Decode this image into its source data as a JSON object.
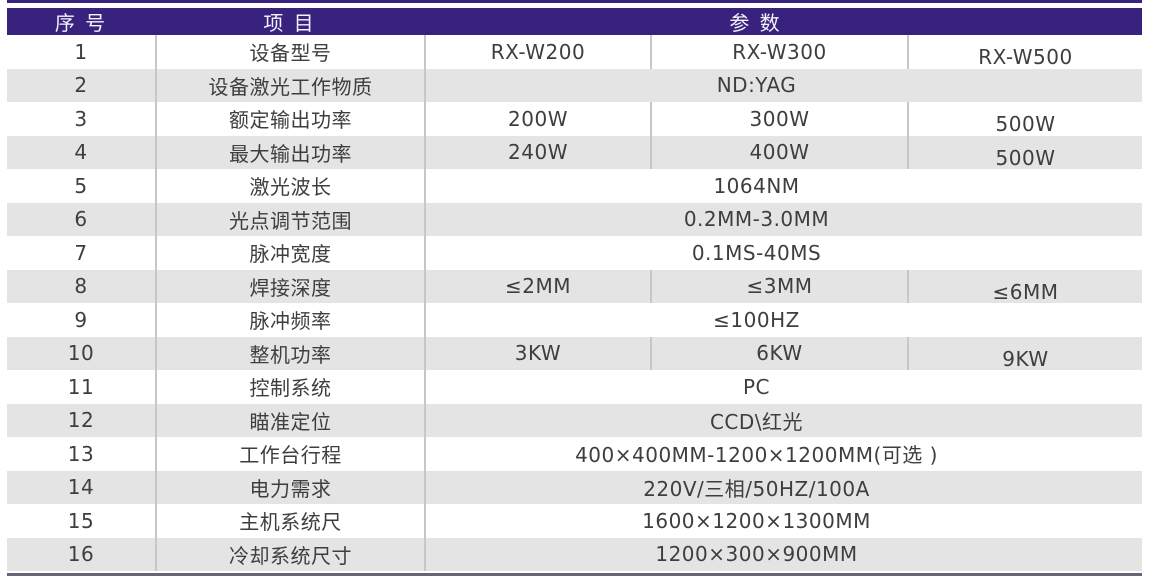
{
  "table": {
    "headers": [
      "序 号",
      "项 目",
      "参 数"
    ],
    "rows": [
      {
        "no": "1",
        "item": "设备型号",
        "values": [
          "RX-W200",
          "RX-W300",
          "RX-W500"
        ]
      },
      {
        "no": "2",
        "item": "设备激光工作物质",
        "span": "ND:YAG"
      },
      {
        "no": "3",
        "item": "额定输出功率",
        "values": [
          "200W",
          "300W",
          "500W"
        ]
      },
      {
        "no": "4",
        "item": "最大输出功率",
        "values": [
          "240W",
          "400W",
          "500W"
        ]
      },
      {
        "no": "5",
        "item": "激光波长",
        "span": "1064NM"
      },
      {
        "no": "6",
        "item": "光点调节范围",
        "span": "0.2MM-3.0MM"
      },
      {
        "no": "7",
        "item": "脉冲宽度",
        "span": "0.1MS-40MS"
      },
      {
        "no": "8",
        "item": "焊接深度",
        "values": [
          "≤2MM",
          "≤3MM",
          "≤6MM"
        ]
      },
      {
        "no": "9",
        "item": "脉冲频率",
        "span": "≤100HZ"
      },
      {
        "no": "10",
        "item": "整机功率",
        "values": [
          "3KW",
          "6KW",
          "9KW"
        ]
      },
      {
        "no": "11",
        "item": "控制系统",
        "span": "PC"
      },
      {
        "no": "12",
        "item": "瞄准定位",
        "span": "CCD\\红光"
      },
      {
        "no": "13",
        "item": "工作台行程",
        "span": "400×400MM-1200×1200MM(可选 )"
      },
      {
        "no": "14",
        "item": "电力需求",
        "span": "220V/三相/50HZ/100A"
      },
      {
        "no": "15",
        "item": "主机系统尺",
        "span": "1600×1200×1300MM"
      },
      {
        "no": "16",
        "item": "冷却系统尺寸",
        "span": "1200×300×900MM"
      }
    ]
  },
  "colors": {
    "header_background": "#38227e",
    "header_text": "#f4f2fa",
    "alt_row_background": "#e4e4e4",
    "row_background": "#ffffff",
    "divider": "#c7c7ca",
    "body_text": "#3e3e3e",
    "bottom_line": "#6b6277"
  }
}
